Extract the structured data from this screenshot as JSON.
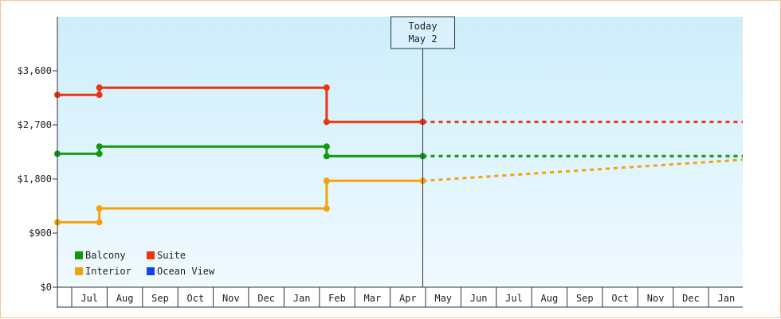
{
  "chart_data": {
    "type": "line",
    "style": "step",
    "ylim": [
      0,
      4500
    ],
    "y_ticks": [
      {
        "value": 0,
        "label": "$0"
      },
      {
        "value": 900,
        "label": "$900"
      },
      {
        "value": 1800,
        "label": "$1,800"
      },
      {
        "value": 2700,
        "label": "$2,700"
      },
      {
        "value": 3600,
        "label": "$3,600"
      }
    ],
    "x_months": [
      "Jul",
      "Aug",
      "Sep",
      "Oct",
      "Nov",
      "Dec",
      "Jan",
      "Feb",
      "Mar",
      "Apr",
      "May",
      "Jun",
      "Jul",
      "Aug",
      "Sep",
      "Oct",
      "Nov",
      "Dec",
      "Jan"
    ],
    "x_domain": [
      -0.4,
      19.2
    ],
    "today": {
      "line1": "Today",
      "line2": "May 2",
      "x": 10.05
    },
    "background": {
      "top": "#cdeefb",
      "bottom": "#f0faff"
    },
    "legend": {
      "placement": "bottom-left",
      "items": [
        {
          "label": "Balcony",
          "color": "#119911"
        },
        {
          "label": "Suite",
          "color": "#ee3311"
        },
        {
          "label": "Interior",
          "color": "#f5a20a"
        },
        {
          "label": "Ocean View",
          "color": "#1144ee"
        }
      ]
    },
    "series": [
      {
        "name": "Suite",
        "color": "#ee3311",
        "points": [
          [
            -0.4,
            3200
          ],
          [
            0.8,
            3200
          ],
          [
            0.8,
            3320
          ],
          [
            7.3,
            3320
          ],
          [
            7.3,
            2750
          ],
          [
            10.05,
            2750
          ]
        ],
        "markers": [
          [
            -0.4,
            3200
          ],
          [
            0.8,
            3200
          ],
          [
            0.8,
            3320
          ],
          [
            7.3,
            3320
          ],
          [
            7.3,
            2750
          ],
          [
            10.05,
            2750
          ]
        ],
        "forecast": [
          [
            10.05,
            2750
          ],
          [
            19.2,
            2750
          ]
        ]
      },
      {
        "name": "Balcony",
        "color": "#119911",
        "points": [
          [
            -0.4,
            2220
          ],
          [
            0.8,
            2220
          ],
          [
            0.8,
            2340
          ],
          [
            7.3,
            2340
          ],
          [
            7.3,
            2180
          ],
          [
            10.05,
            2180
          ]
        ],
        "markers": [
          [
            -0.4,
            2220
          ],
          [
            0.8,
            2220
          ],
          [
            0.8,
            2340
          ],
          [
            7.3,
            2340
          ],
          [
            7.3,
            2180
          ],
          [
            10.05,
            2180
          ]
        ],
        "forecast": [
          [
            10.05,
            2180
          ],
          [
            19.2,
            2180
          ]
        ]
      },
      {
        "name": "Interior",
        "color": "#f5a20a",
        "points": [
          [
            -0.4,
            1080
          ],
          [
            0.8,
            1080
          ],
          [
            0.8,
            1310
          ],
          [
            7.3,
            1310
          ],
          [
            7.3,
            1770
          ],
          [
            10.05,
            1770
          ]
        ],
        "markers": [
          [
            -0.4,
            1080
          ],
          [
            0.8,
            1080
          ],
          [
            0.8,
            1310
          ],
          [
            7.3,
            1310
          ],
          [
            7.3,
            1770
          ],
          [
            10.05,
            1770
          ]
        ],
        "forecast": [
          [
            10.05,
            1770
          ],
          [
            19.2,
            2120
          ]
        ]
      }
    ]
  }
}
